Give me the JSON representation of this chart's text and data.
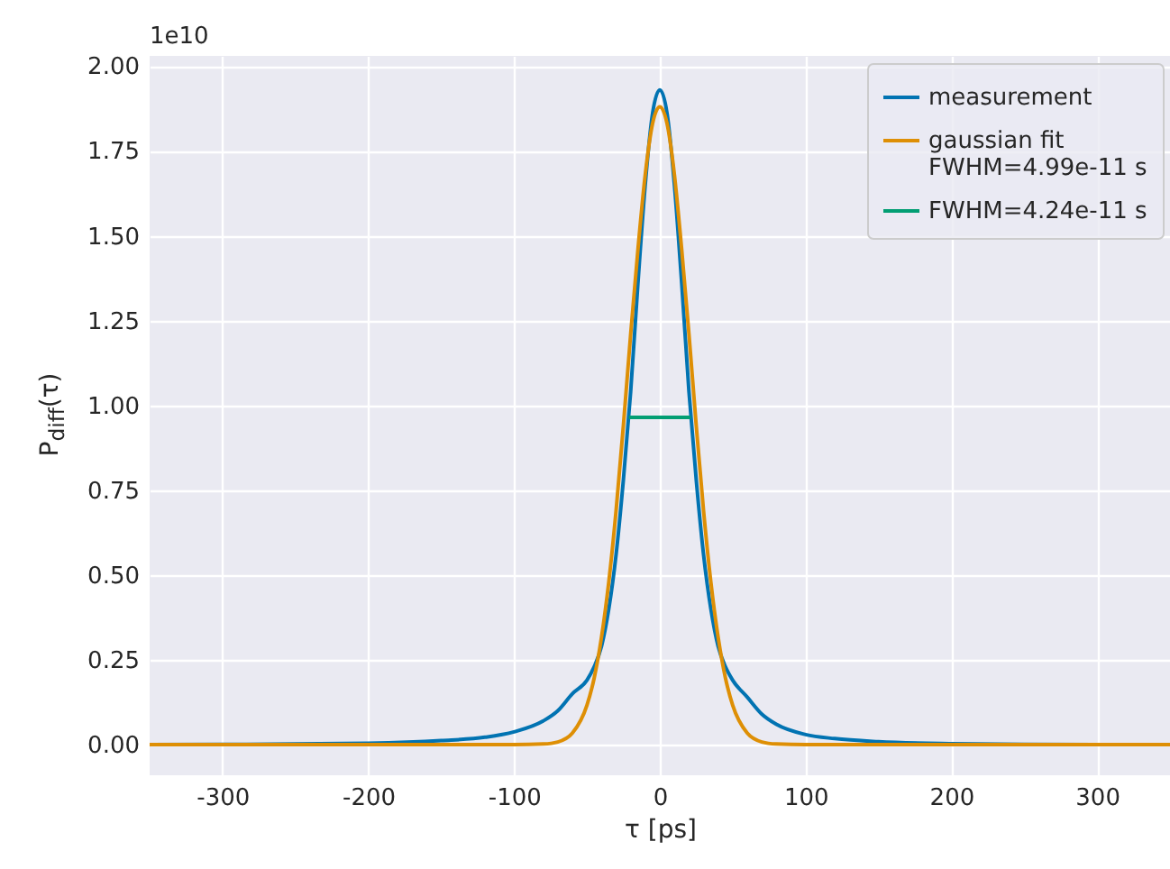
{
  "chart_data": {
    "type": "line",
    "xlabel": "τ [ps]",
    "ylabel": "P$_{diff}$(τ)",
    "annotations": [
      "1e10"
    ],
    "x": [
      -350,
      -300,
      -250,
      -200,
      -150,
      -120,
      -100,
      -80,
      -70,
      -60,
      -50,
      -45,
      -40,
      -35,
      -30,
      -25,
      -20,
      -15,
      -10,
      -5,
      0,
      5,
      10,
      15,
      20,
      25,
      30,
      35,
      40,
      45,
      50,
      60,
      70,
      80,
      100,
      120,
      150,
      200,
      250,
      300,
      350
    ],
    "series": [
      {
        "name": "measurement",
        "color": "#0173b2",
        "values": [
          0,
          0.001,
          0.002,
          0.004,
          0.012,
          0.022,
          0.038,
          0.07,
          0.1,
          0.15,
          0.19,
          0.23,
          0.29,
          0.4,
          0.56,
          0.78,
          1.04,
          1.36,
          1.65,
          1.86,
          1.93,
          1.86,
          1.65,
          1.36,
          1.04,
          0.78,
          0.56,
          0.4,
          0.29,
          0.23,
          0.19,
          0.14,
          0.09,
          0.06,
          0.03,
          0.018,
          0.009,
          0.003,
          0.001,
          0,
          0
        ]
      },
      {
        "name": "gaussian fit\nFWHM=4.99e-11 s",
        "color": "#de8f05",
        "values": [
          0,
          0,
          0,
          0,
          0,
          0,
          0,
          0.002,
          0.008,
          0.034,
          0.116,
          0.197,
          0.317,
          0.48,
          0.69,
          0.94,
          1.21,
          1.46,
          1.68,
          1.83,
          1.88,
          1.83,
          1.68,
          1.46,
          1.21,
          0.94,
          0.69,
          0.48,
          0.317,
          0.197,
          0.116,
          0.034,
          0.008,
          0.002,
          0,
          0,
          0,
          0,
          0,
          0,
          0
        ]
      },
      {
        "name": "FWHM=4.24e-11 s",
        "color": "#029e73",
        "x": [
          -21.2,
          21.2
        ],
        "values": [
          0.965,
          0.965
        ]
      }
    ],
    "xlim": [
      -350,
      350
    ],
    "ylim": [
      -0.09,
      2.03
    ],
    "xticks": [
      -300,
      -200,
      -100,
      0,
      100,
      200,
      300
    ],
    "yticks": [
      {
        "value": 0,
        "label": "0.00"
      },
      0.25,
      {
        "value": 0.5,
        "label": "0.50"
      },
      0.75,
      {
        "value": 1,
        "label": "1.00"
      },
      1.25,
      {
        "value": 1.5,
        "label": "1.50"
      },
      1.75,
      {
        "value": 2,
        "label": "2.00"
      }
    ],
    "grid": true,
    "legend": "top right",
    "line_style": "solid",
    "marker": "none"
  }
}
